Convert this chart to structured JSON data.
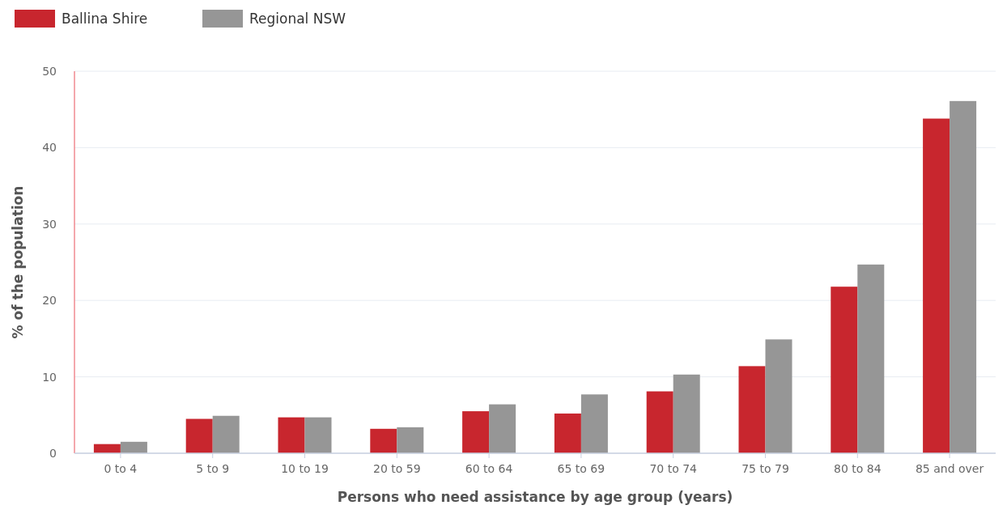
{
  "chart_data": {
    "type": "bar",
    "xlabel": "Persons who need assistance by age group (years)",
    "ylabel": "% of the population",
    "categories": [
      "0 to 4",
      "5 to 9",
      "10 to 19",
      "20 to 59",
      "60 to 64",
      "65 to 69",
      "70 to 74",
      "75 to 79",
      "80 to 84",
      "85 and over"
    ],
    "series": [
      {
        "name": "Ballina Shire",
        "color": "#c8262e",
        "values": [
          1.2,
          4.5,
          4.7,
          3.2,
          5.5,
          5.2,
          8.1,
          11.4,
          21.8,
          43.8
        ]
      },
      {
        "name": "Regional NSW",
        "color": "#969696",
        "values": [
          1.5,
          4.9,
          4.7,
          3.4,
          6.4,
          7.7,
          10.3,
          14.9,
          24.7,
          46.1
        ]
      }
    ],
    "ylim": [
      0,
      50
    ],
    "yticks": [
      0,
      10,
      20,
      30,
      40,
      50
    ],
    "grid": "y",
    "legend": "top left"
  }
}
